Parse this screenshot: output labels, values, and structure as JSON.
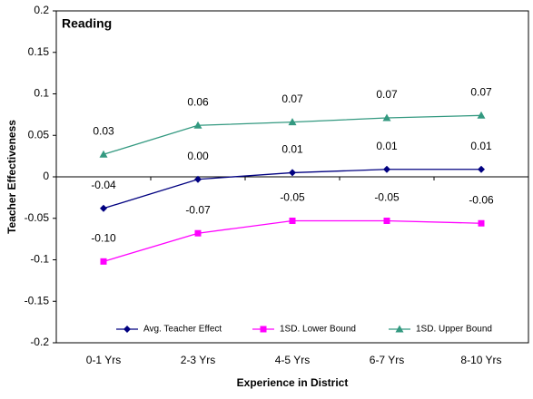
{
  "chart_data": {
    "type": "line",
    "title": "Reading",
    "x_label": "Experience in District",
    "y_label": "Teacher Effectiveness",
    "categories": [
      "0-1 Yrs",
      "2-3 Yrs",
      "4-5 Yrs",
      "6-7 Yrs",
      "8-10 Yrs"
    ],
    "series": [
      {
        "name": "Avg. Teacher Effect",
        "color": "#000080",
        "marker": "diamond",
        "values": [
          -0.038,
          -0.003,
          0.005,
          0.009,
          0.009
        ],
        "value_labels": [
          "-0.04",
          "0.00",
          "0.01",
          "0.01",
          "0.01"
        ]
      },
      {
        "name": "1SD. Lower Bound",
        "color": "#ff00ff",
        "marker": "square",
        "values": [
          -0.102,
          -0.068,
          -0.053,
          -0.053,
          -0.056
        ],
        "value_labels": [
          "-0.10",
          "-0.07",
          "-0.05",
          "-0.05",
          "-0.06"
        ]
      },
      {
        "name": "1SD. Upper Bound",
        "color": "#339980",
        "marker": "triangle",
        "values": [
          0.027,
          0.062,
          0.066,
          0.071,
          0.074
        ],
        "value_labels": [
          "0.03",
          "0.06",
          "0.07",
          "0.07",
          "0.07"
        ]
      }
    ],
    "ylim": [
      -0.2,
      0.2
    ],
    "yticks": [
      -0.2,
      -0.15,
      -0.1,
      -0.05,
      0,
      0.05,
      0.1,
      0.15,
      0.2
    ],
    "legend": "bottom"
  }
}
